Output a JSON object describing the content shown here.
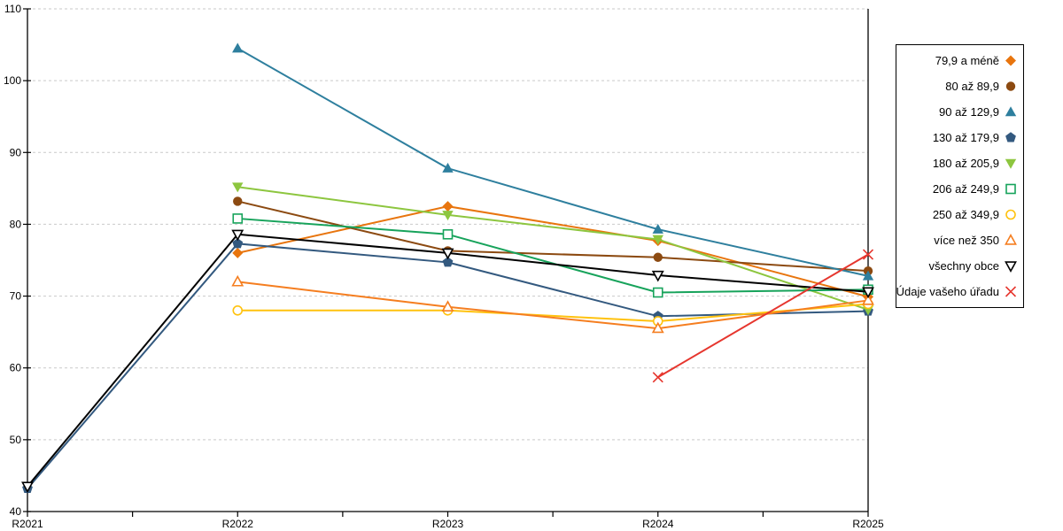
{
  "chart_data": {
    "type": "line",
    "title": "",
    "xlabel": "",
    "ylabel": "",
    "categories": [
      "R2021",
      "R2022",
      "R2023",
      "R2024",
      "R2025"
    ],
    "ylim": [
      40,
      110
    ],
    "y_ticks": [
      40,
      50,
      60,
      70,
      80,
      90,
      100,
      110
    ],
    "grid": "horizontal-dashed",
    "gridline_color": "#c9c9c9",
    "axis_color": "#000000",
    "legend_position": "right-box",
    "series": [
      {
        "name": "79,9 a méně",
        "color": "#e8750e",
        "marker": "diamond",
        "values": [
          null,
          76.0,
          82.5,
          77.7,
          69.9
        ]
      },
      {
        "name": "80 až 89,9",
        "color": "#8c4a11",
        "marker": "circle",
        "values": [
          null,
          83.2,
          76.3,
          75.4,
          73.5
        ]
      },
      {
        "name": "90 až 129,9",
        "color": "#2e7f9e",
        "marker": "triangle",
        "values": [
          null,
          104.5,
          87.8,
          79.3,
          72.8
        ]
      },
      {
        "name": "130 až 179,9",
        "color": "#33597f",
        "marker": "pentagon",
        "values": [
          43.2,
          77.3,
          74.7,
          67.2,
          67.9
        ]
      },
      {
        "name": "180 až 205,9",
        "color": "#8dc63f",
        "marker": "triangle-down",
        "values": [
          null,
          85.2,
          81.3,
          77.9,
          68.1
        ]
      },
      {
        "name": "206 až 249,9",
        "color": "#17a35b",
        "marker": "square-open",
        "values": [
          null,
          80.8,
          78.6,
          70.5,
          70.9
        ]
      },
      {
        "name": "250 až 349,9",
        "color": "#ffc20e",
        "marker": "circle-open",
        "values": [
          null,
          68.0,
          68.0,
          66.5,
          68.9
        ]
      },
      {
        "name": "více než 350",
        "color": "#f57e20",
        "marker": "triangle-open",
        "values": [
          null,
          72.0,
          68.5,
          65.5,
          69.4
        ]
      },
      {
        "name": "všechny obce",
        "color": "#000000",
        "marker": "triangle-down-open",
        "values": [
          43.5,
          78.6,
          76.0,
          72.9,
          70.6
        ]
      },
      {
        "name": "Údaje vašeho úřadu",
        "color": "#e6362e",
        "marker": "x",
        "values": [
          null,
          null,
          null,
          58.7,
          75.8
        ]
      }
    ]
  }
}
